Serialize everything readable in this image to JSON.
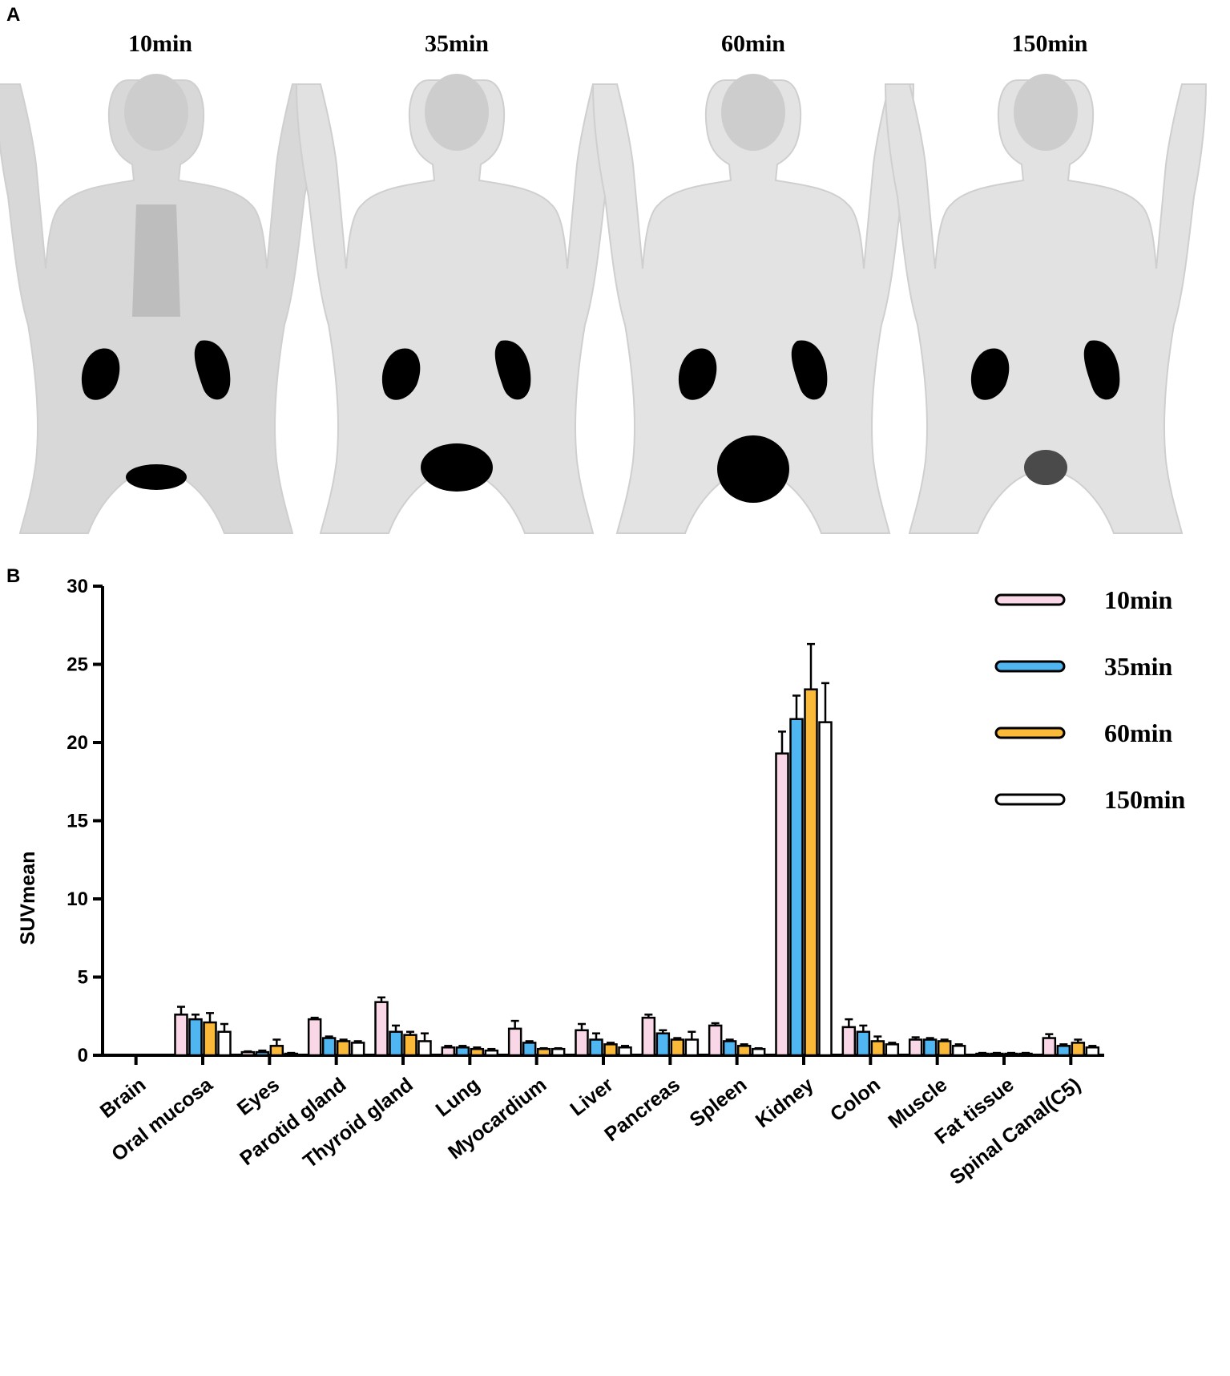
{
  "panel_a": {
    "letter": "A",
    "timepoints": [
      "10min",
      "35min",
      "60min",
      "150min"
    ]
  },
  "panel_b": {
    "letter": "B"
  },
  "colors": {
    "10min": "#f9d7e6",
    "35min": "#4fb6f2",
    "60min": "#fbb93a",
    "150min": "#ffffff",
    "organ_uptake": "#000000"
  },
  "chart_data": {
    "type": "bar",
    "ylabel": "SUVmean",
    "xlabel": "",
    "ylim": [
      0,
      30
    ],
    "yticks": [
      0,
      5,
      10,
      15,
      20,
      25,
      30
    ],
    "legend_position": "top-right",
    "grid": false,
    "categories": [
      "Brain",
      "Oral mucosa",
      "Eyes",
      "Parotid gland",
      "Thyroid gland",
      "Lung",
      "Myocardium",
      "Liver",
      "Pancreas",
      "Spleen",
      "Kidney",
      "Colon",
      "Muscle",
      "Fat tissue",
      "Spinal Canal(C5)"
    ],
    "series": [
      {
        "name": "10min",
        "values": [
          0,
          2.6,
          0.2,
          2.3,
          3.4,
          0.5,
          1.7,
          1.6,
          2.4,
          1.9,
          19.3,
          1.8,
          1.0,
          0.1,
          1.1
        ],
        "errors": [
          0,
          0.5,
          0.05,
          0.1,
          0.3,
          0.1,
          0.5,
          0.4,
          0.2,
          0.15,
          1.4,
          0.5,
          0.15,
          0.05,
          0.25
        ]
      },
      {
        "name": "35min",
        "values": [
          0,
          2.3,
          0.2,
          1.1,
          1.5,
          0.5,
          0.8,
          1.0,
          1.4,
          0.9,
          21.5,
          1.5,
          1.0,
          0.1,
          0.6
        ],
        "errors": [
          0,
          0.3,
          0.1,
          0.1,
          0.4,
          0.1,
          0.1,
          0.4,
          0.2,
          0.1,
          1.5,
          0.4,
          0.1,
          0.05,
          0.1
        ]
      },
      {
        "name": "60min",
        "values": [
          0,
          2.1,
          0.6,
          0.9,
          1.3,
          0.4,
          0.4,
          0.7,
          1.0,
          0.6,
          23.4,
          0.9,
          0.9,
          0.1,
          0.8
        ],
        "errors": [
          0,
          0.6,
          0.4,
          0.1,
          0.2,
          0.1,
          0.05,
          0.1,
          0.1,
          0.1,
          2.9,
          0.3,
          0.1,
          0.05,
          0.2
        ]
      },
      {
        "name": "150min",
        "values": [
          0,
          1.5,
          0.1,
          0.8,
          0.9,
          0.3,
          0.4,
          0.5,
          1.0,
          0.4,
          21.3,
          0.7,
          0.6,
          0.1,
          0.5
        ],
        "errors": [
          0,
          0.5,
          0.05,
          0.1,
          0.5,
          0.1,
          0.05,
          0.1,
          0.5,
          0.05,
          2.5,
          0.1,
          0.1,
          0.05,
          0.1
        ]
      }
    ]
  }
}
